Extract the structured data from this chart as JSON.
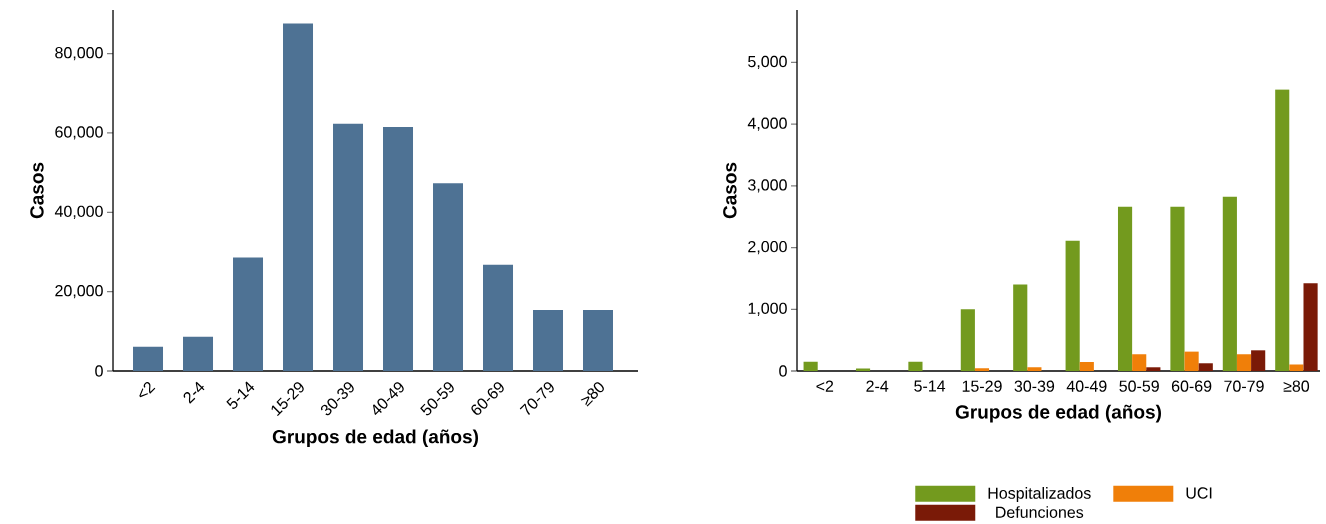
{
  "chart_data": [
    {
      "type": "bar",
      "xlabel": "Grupos de edad (años)",
      "ylabel": "Casos",
      "categories": [
        "<2",
        "2-4",
        "5-14",
        "15-29",
        "30-39",
        "40-49",
        "50-59",
        "60-69",
        "70-79",
        "≥80"
      ],
      "values": [
        6100,
        8600,
        28600,
        87600,
        62300,
        61500,
        47300,
        26800,
        15400,
        15400
      ],
      "color": "#4e7294",
      "ylim": [
        0,
        91000
      ],
      "yticks": [
        0,
        {
          "value": 20000,
          "label": "20,000"
        },
        {
          "value": 40000,
          "label": "40,000"
        },
        {
          "value": 60000,
          "label": "60,000"
        },
        {
          "value": 80000,
          "label": "80,000"
        }
      ]
    },
    {
      "type": "bar",
      "xlabel": "Grupos de edad (años)",
      "ylabel": "Casos",
      "categories": [
        "<2",
        "2-4",
        "5-14",
        "15-29",
        "30-39",
        "40-49",
        "50-59",
        "60-69",
        "70-79",
        "≥80"
      ],
      "series": [
        {
          "name": "Hospitalizados",
          "color": "#739a1e",
          "values": [
            150,
            40,
            150,
            1000,
            1400,
            2110,
            2660,
            2660,
            2825,
            4560
          ]
        },
        {
          "name": "UCI",
          "color": "#f07f09",
          "values": [
            0,
            0,
            0,
            45,
            60,
            145,
            270,
            315,
            270,
            105
          ]
        },
        {
          "name": "Defunciones",
          "color": "#7a1a07",
          "values": [
            0,
            0,
            0,
            0,
            0,
            0,
            60,
            125,
            335,
            1420
          ]
        }
      ],
      "ylim": [
        0,
        5850
      ],
      "legend": "bottom",
      "yticks": [
        0,
        {
          "value": 1000,
          "label": "1,000"
        },
        {
          "value": 2000,
          "label": "2,000"
        },
        {
          "value": 3000,
          "label": "3,000"
        },
        {
          "value": 4000,
          "label": "4,000"
        },
        {
          "value": 5000,
          "label": "5,000"
        }
      ]
    }
  ]
}
